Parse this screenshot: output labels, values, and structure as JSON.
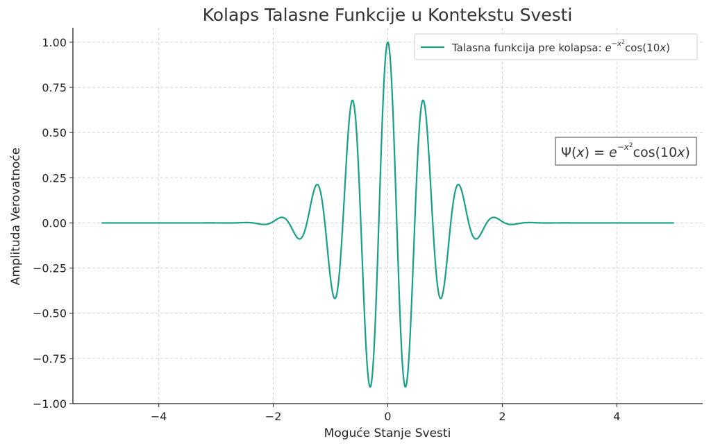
{
  "chart_data": {
    "type": "line",
    "title": "Kolaps Talasne Funkcije u Kontekstu Svesti",
    "xlabel": "Moguće Stanje Svesti",
    "ylabel": "Amplituda Verovatnoće",
    "xlim": [
      -5.5,
      5.5
    ],
    "ylim": [
      -1.0,
      1.08
    ],
    "x_ticks": [
      -4,
      -2,
      0,
      2,
      4
    ],
    "x_tick_labels": [
      "−4",
      "−2",
      "0",
      "2",
      "4"
    ],
    "y_ticks": [
      -1.0,
      -0.75,
      -0.5,
      -0.25,
      0.0,
      0.25,
      0.5,
      0.75,
      1.0
    ],
    "y_tick_labels": [
      "−1.00",
      "−0.75",
      "−0.50",
      "−0.25",
      "0.00",
      "0.25",
      "0.50",
      "0.75",
      "1.00"
    ],
    "grid": true,
    "legend_position": "top-right",
    "series": [
      {
        "name": "Talasna funkcija pre kolapsa: e^{-x^2}cos(10x)",
        "color": "#16a085",
        "function": "exp(-x^2)*cos(10x)",
        "x_range": [
          -5,
          5
        ],
        "x": [
          -5,
          -2.5,
          -2.2,
          -1.85,
          -1.55,
          -1.25,
          -0.93,
          -0.63,
          -0.31,
          0,
          0.31,
          0.63,
          0.93,
          1.25,
          1.55,
          1.85,
          2.2,
          2.5,
          5
        ],
        "y": [
          0.0,
          0.002,
          -0.006,
          0.03,
          -0.085,
          0.21,
          -0.41,
          0.67,
          -0.9,
          1.0,
          -0.9,
          0.67,
          -0.41,
          0.21,
          -0.085,
          0.03,
          -0.006,
          0.002,
          0.0
        ]
      }
    ],
    "legend": {
      "label_text": "Talasna funkcija pre kolapsa: ",
      "label_math": [
        "e",
        "−x",
        "2",
        "cos(10",
        "x",
        ")"
      ]
    },
    "annotation": {
      "parts": [
        "Ψ(",
        "x",
        ") = ",
        "e",
        "−x",
        "2",
        "cos(10",
        "x",
        ")"
      ]
    }
  }
}
